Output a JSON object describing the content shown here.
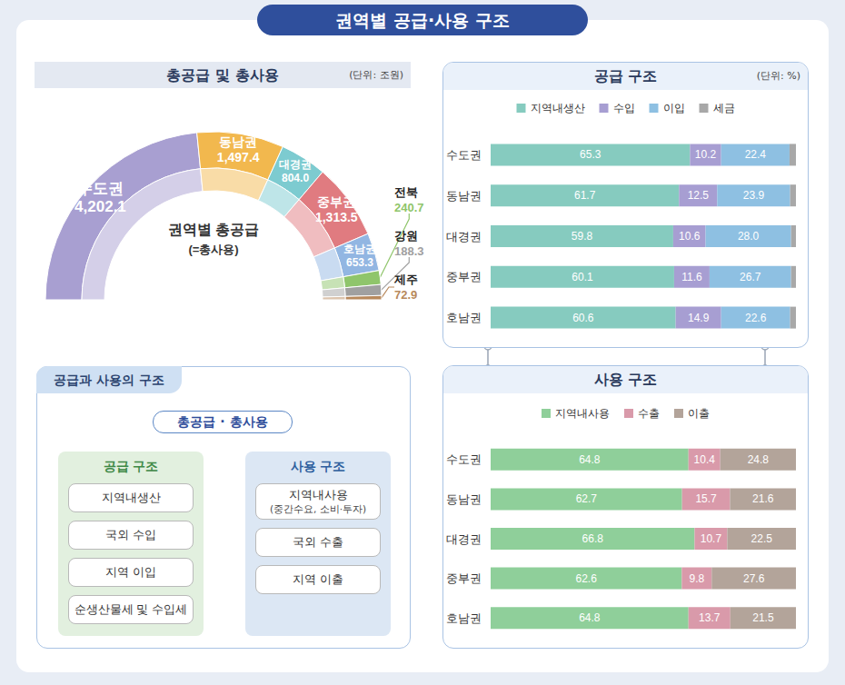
{
  "title": "권역별 공급·사용 구조",
  "chart_data": [
    {
      "type": "pie",
      "title": "총공급 및 총사용",
      "subtitle": "(단위: 조원)",
      "annotations": [
        "권역별 총공급",
        "(=총사용)"
      ],
      "categories": [
        "수도권",
        "동남권",
        "대경권",
        "중부권",
        "호남권",
        "전북",
        "강원",
        "제주"
      ],
      "values": [
        4202.1,
        1497.4,
        804.0,
        1313.5,
        653.3,
        240.7,
        188.3,
        72.9
      ],
      "value_labels": [
        "4,202.1",
        "1,497.4",
        "804.0",
        "1,313.5",
        "653.3",
        "240.7",
        "188.3",
        "72.9"
      ],
      "colors": [
        "#a89fd1",
        "#f2b84e",
        "#7dcbd0",
        "#e07b80",
        "#92b6e2",
        "#8fc56b",
        "#a0a0a0",
        "#b8895c"
      ],
      "data_labels": true
    },
    {
      "type": "bar",
      "title": "공급 구조",
      "subtitle": "(단위: %)",
      "orientation": "horizontal",
      "stacked": true,
      "data_labels": true,
      "grid": false,
      "legend": "top",
      "tick_labels": "y",
      "xlim": [
        0,
        100
      ],
      "categories": [
        "수도권",
        "동남권",
        "대경권",
        "중부권",
        "호남권"
      ],
      "series": [
        {
          "name": "지역내생산",
          "color": "#86cbbf",
          "values": [
            65.3,
            61.7,
            59.8,
            60.1,
            60.6
          ]
        },
        {
          "name": "수입",
          "color": "#a79ed2",
          "values": [
            10.2,
            12.5,
            10.6,
            11.6,
            14.9
          ]
        },
        {
          "name": "이입",
          "color": "#8ec0e2",
          "values": [
            22.4,
            23.9,
            28.0,
            26.7,
            22.6
          ],
          "value_labels": [
            "22.4",
            "23.9",
            "28.0",
            "26.7",
            "22.6"
          ]
        },
        {
          "name": "세금",
          "color": "#a8a8a8",
          "values": [
            2.1,
            1.9,
            1.6,
            1.6,
            1.9
          ],
          "value_labels": [
            null,
            null,
            null,
            null,
            null
          ]
        }
      ]
    },
    {
      "type": "bar",
      "title": "사용 구조",
      "orientation": "horizontal",
      "stacked": true,
      "data_labels": true,
      "grid": false,
      "legend": "top",
      "tick_labels": "y",
      "xlim": [
        0,
        100
      ],
      "categories": [
        "수도권",
        "동남권",
        "대경권",
        "중부권",
        "호남권"
      ],
      "series": [
        {
          "name": "지역내사용",
          "color": "#8fcf9a",
          "values": [
            64.8,
            62.7,
            66.8,
            62.6,
            64.8
          ]
        },
        {
          "name": "수출",
          "color": "#d99aaa",
          "values": [
            10.4,
            15.7,
            10.7,
            9.8,
            13.7
          ]
        },
        {
          "name": "이출",
          "color": "#b3a49a",
          "values": [
            24.8,
            21.6,
            22.5,
            27.6,
            21.5
          ]
        }
      ]
    }
  ],
  "diagram": {
    "title": "공급과 사용의 구조",
    "root": "총공급 · 총사용",
    "columns": [
      {
        "title": "공급 구조",
        "items": [
          [
            "지역내생산"
          ],
          [
            "국외 수입"
          ],
          [
            "지역 이입"
          ],
          [
            "순생산물세 및 수입세"
          ]
        ]
      },
      {
        "title": "사용 구조",
        "items": [
          [
            "지역내사용",
            "(중간수요, 소비·투자)"
          ],
          [
            "국외 수출"
          ],
          [
            "지역 이출"
          ]
        ]
      }
    ]
  }
}
